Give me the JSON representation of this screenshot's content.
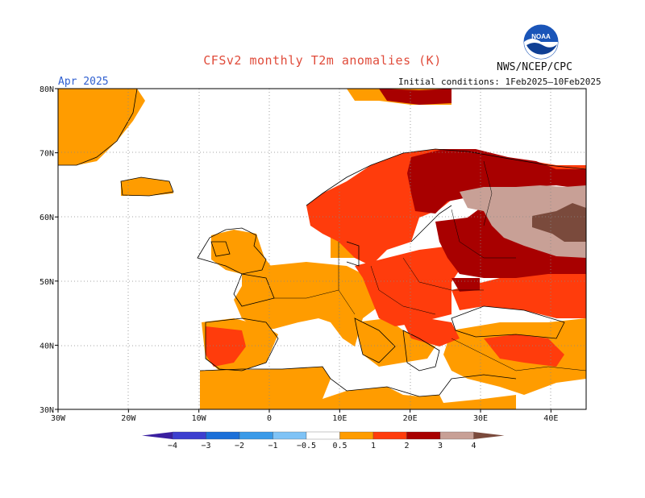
{
  "title": "CFSv2 monthly T2m anomalies (K)",
  "month_label": "Apr 2025",
  "initial_conditions": "Initial conditions: 1Feb2025–10Feb2025",
  "agency": "NWS/NCEP/CPC",
  "logo": {
    "icon": "noaa-logo-icon",
    "text": "NOAA"
  },
  "map": {
    "lon_range": [
      -30,
      45
    ],
    "lat_range": [
      30,
      80
    ],
    "lon_ticks": [
      "30W",
      "20W",
      "10W",
      "0",
      "10E",
      "20E",
      "30E",
      "40E"
    ],
    "lat_ticks": [
      "80N",
      "70N",
      "60N",
      "50N",
      "40N",
      "30N"
    ],
    "grid": "dotted"
  },
  "colorbar": {
    "levels": [
      "-4",
      "-3",
      "-2",
      "-1",
      "-0.5",
      "0.5",
      "1",
      "2",
      "3",
      "4"
    ],
    "colors": [
      "#3a1fa0",
      "#3d3fcf",
      "#1b6fd8",
      "#3a9ae8",
      "#7fc3f6",
      "#ffffff",
      "#ff9c00",
      "#ff3c0c",
      "#a80000",
      "#c8a096",
      "#7a4a3c"
    ]
  },
  "anomaly_colors": {
    "lt_0.5": "#ffffff",
    "0.5_1": "#ff9c00",
    "1_2": "#ff3c0c",
    "2_3": "#a80000",
    "3_4": "#c8a096",
    "gt_4": "#7a4a3c"
  }
}
